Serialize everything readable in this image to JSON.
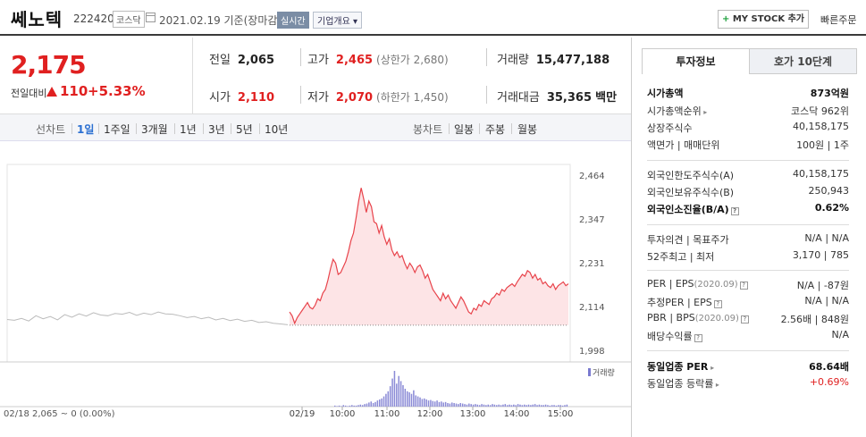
{
  "header": {
    "name": "쎄노텍",
    "code": "222420",
    "market": "코스닥",
    "date": "2021.02.19 기준(장마감)",
    "realtime": "실시간",
    "overview": "기업개요",
    "mystock_plus": "+",
    "mystock": "MY STOCK 추가",
    "quick_order": "빠른주문"
  },
  "price": {
    "now": "2,175",
    "compare_label": "전일대비",
    "change": "110",
    "pct": "+5.33%",
    "color_up": "#e02020"
  },
  "stats": {
    "prev_label": "전일",
    "prev": "2,065",
    "high_label": "고가",
    "high": "2,465",
    "high_limit": "(상한가 2,680)",
    "volume_label": "거래량",
    "volume": "15,477,188",
    "open_label": "시가",
    "open": "2,110",
    "low_label": "저가",
    "low": "2,070",
    "low_limit": "(하한가 1,450)",
    "amount_label": "거래대금",
    "amount": "35,365",
    "amount_unit": "백만"
  },
  "periods": {
    "line_label": "선차트",
    "items": [
      "1일",
      "1주일",
      "3개월",
      "1년",
      "3년",
      "5년",
      "10년"
    ],
    "active": "1일",
    "candle_label": "봉차트",
    "candle_items": [
      "일봉",
      "주봉",
      "월봉"
    ]
  },
  "chart_data": {
    "type": "line",
    "y_ticks": [
      "2,464",
      "2,347",
      "2,231",
      "2,114",
      "1,998"
    ],
    "ylim": [
      1998,
      2464
    ],
    "x_ticks": [
      "02/19",
      "10:00",
      "11:00",
      "12:00",
      "13:00",
      "14:00",
      "15:00"
    ],
    "prev_day_label": "02/18  2,065 ~ 0 (0.00%)",
    "volume_legend": "거래량",
    "prev_close": 2065,
    "prev_day_series": [
      2080,
      2078,
      2083,
      2076,
      2090,
      2082,
      2088,
      2079,
      2093,
      2086,
      2095,
      2089,
      2098,
      2092,
      2090,
      2096,
      2094,
      2099,
      2091,
      2097,
      2093,
      2100,
      2095,
      2094,
      2090,
      2085,
      2088,
      2082,
      2086,
      2079,
      2083,
      2077,
      2081,
      2075,
      2078,
      2072,
      2074,
      2070,
      2068,
      2066
    ],
    "today_series": [
      2100,
      2090,
      2070,
      2085,
      2095,
      2105,
      2115,
      2125,
      2112,
      2108,
      2118,
      2135,
      2130,
      2150,
      2160,
      2185,
      2215,
      2240,
      2230,
      2200,
      2205,
      2220,
      2235,
      2260,
      2290,
      2310,
      2350,
      2395,
      2430,
      2400,
      2365,
      2395,
      2380,
      2340,
      2335,
      2310,
      2330,
      2300,
      2280,
      2295,
      2265,
      2250,
      2260,
      2245,
      2250,
      2230,
      2215,
      2230,
      2220,
      2205,
      2220,
      2225,
      2210,
      2190,
      2200,
      2180,
      2160,
      2150,
      2140,
      2130,
      2150,
      2135,
      2145,
      2130,
      2120,
      2110,
      2125,
      2140,
      2130,
      2115,
      2100,
      2095,
      2110,
      2105,
      2120,
      2115,
      2130,
      2125,
      2120,
      2135,
      2140,
      2150,
      2145,
      2160,
      2155,
      2165,
      2170,
      2175,
      2168,
      2180,
      2190,
      2200,
      2195,
      2210,
      2205,
      2190,
      2200,
      2185,
      2190,
      2175,
      2180,
      2170,
      2165,
      2175,
      2160,
      2170,
      2175,
      2180,
      2170,
      2175
    ],
    "volume_series": [
      2,
      1,
      2,
      1,
      3,
      2,
      1,
      2,
      3,
      2,
      2,
      3,
      4,
      3,
      5,
      6,
      8,
      10,
      7,
      9,
      12,
      14,
      16,
      20,
      25,
      30,
      40,
      55,
      70,
      45,
      60,
      50,
      42,
      35,
      30,
      28,
      25,
      32,
      22,
      20,
      18,
      15,
      16,
      14,
      12,
      13,
      11,
      10,
      12,
      9,
      10,
      8,
      9,
      7,
      6,
      8,
      7,
      6,
      5,
      7,
      6,
      5,
      4,
      6,
      5,
      4,
      5,
      4,
      3,
      5,
      4,
      3,
      4,
      3,
      5,
      4,
      3,
      4,
      3,
      4,
      5,
      3,
      4,
      3,
      4,
      3,
      5,
      4,
      3,
      4,
      3,
      4,
      3,
      4,
      5,
      3,
      4,
      3,
      3,
      4,
      3,
      2,
      3,
      3,
      2,
      3,
      3,
      2,
      3,
      4
    ]
  },
  "side": {
    "tab_active": "투자정보",
    "tab_other": "호가 10단계",
    "rows": [
      {
        "label": "시가총액",
        "value": "873억원",
        "bold": true
      },
      {
        "label": "시가총액순위",
        "value": "코스닥 962위",
        "arrow": true
      },
      {
        "label": "상장주식수",
        "value": "40,158,175"
      },
      {
        "label": "액면가 | 매매단위",
        "value": "100원 | 1주"
      },
      {
        "label": "외국인한도주식수(A)",
        "value": "40,158,175"
      },
      {
        "label": "외국인보유주식수(B)",
        "value": "250,943"
      },
      {
        "label": "외국인소진율(B/A)",
        "value": "0.62%",
        "bold": true,
        "q": true
      },
      {
        "label": "투자의견 | 목표주가",
        "value": "N/A | N/A"
      },
      {
        "label": "52주최고 | 최저",
        "value": "3,170 | 785"
      },
      {
        "label": "PER | EPS",
        "tag": "(2020.09)",
        "value": "N/A | -87원",
        "q": true
      },
      {
        "label": "추정PER | EPS",
        "value": "N/A | N/A",
        "q": true
      },
      {
        "label": "PBR | BPS",
        "tag": "(2020.09)",
        "value": "2.56배 | 848원",
        "q": true
      },
      {
        "label": "배당수익률",
        "value": "N/A",
        "q": true
      },
      {
        "label": "동일업종 PER",
        "value": "68.64배",
        "bold": true,
        "arrow": true
      },
      {
        "label": "동일업종 등락률",
        "value": "+0.69%",
        "red": true,
        "arrow": true
      }
    ]
  }
}
